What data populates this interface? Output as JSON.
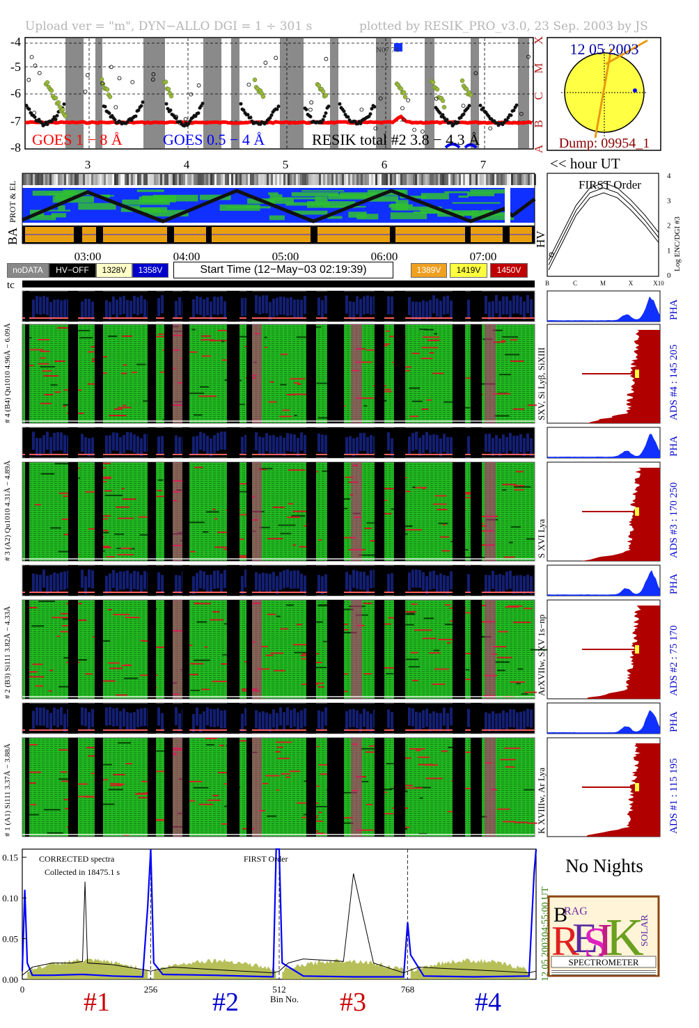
{
  "header": {
    "left": "Upload ver = \"m\", DYN−ALLO DGI =   1 ÷ 301 s",
    "right": "plotted by RESIK_PRO_v3.0, 23 Sep. 2003 by JS"
  },
  "goes": {
    "y_ticks": [
      "-4",
      "-5",
      "-6",
      "-7",
      "-8"
    ],
    "class_letters": [
      "X",
      "M",
      "C",
      "B",
      "A"
    ],
    "label_1_8": "GOES 1 − 8 Å",
    "label_05_4": "GOES 0.5 − 4 Å",
    "label_resik": "RESIK total #2  3.8 − 4.3 Å",
    "noaa_label": "N07 74",
    "colors": {
      "goes_long": "#ff0000",
      "goes_short": "#0000ff",
      "resik": "#000000",
      "eclipse": "#888888",
      "saa": "#9ab83a"
    }
  },
  "sun": {
    "date": "12 05 2003",
    "dump": "Dump: 09954_1"
  },
  "hour_axis": {
    "ticks": [
      "3",
      "4",
      "5",
      "6",
      "7"
    ],
    "label": "<< hour UT"
  },
  "orbit": {
    "prot_label": "PROT & EL",
    "ba_label": "BA",
    "hv_label": "HV"
  },
  "time_axis": {
    "ticks": [
      "03:00",
      "04:00",
      "05:00",
      "06:00",
      "07:00"
    ]
  },
  "legend": {
    "nodata": "noDATA",
    "hvoff": "HV−OFF",
    "v1328": "1328V",
    "v1358": "1358V",
    "start_time": "Start Time (12−May−03 02:19:39)",
    "v1389": "1389V",
    "v1419": "1419V",
    "v1450": "1450V"
  },
  "tc_label": "tc",
  "channels": [
    {
      "left": "# 4 (B4) Qu1010 4.96Å − 6.09Å",
      "lines": "SXV, Si Lyβ, SiXIII",
      "ads": "ADS #4 :   145 205",
      "pha": "PHA"
    },
    {
      "left": "# 3 (A2) Qu1010  4.31Å − 4.89Å",
      "lines": "S XVI Lya",
      "ads": "ADS #3 :   170 250",
      "pha": "PHA"
    },
    {
      "left": "# 2 (B3) Si111  3.82Å − 4.33Å",
      "lines": "ArXVIIw, SXV 1s−np",
      "ads": "ADS #2 :   75 170",
      "pha": "PHA"
    },
    {
      "left": "# 1 (A1) Si111  3.37Å − 3.88Å",
      "lines": "K XVIIIw, Ar Lya",
      "ads": "ADS #1 :   115 195",
      "pha": "PHA"
    }
  ],
  "first_order": {
    "title": "FIRST Order",
    "x_ticks": [
      "B",
      "C",
      "M",
      "X",
      "X10"
    ],
    "y_ticks": [
      "0",
      "1",
      "2",
      "3",
      "4"
    ],
    "ylabel": "Log ENC/DGI #3",
    "ylim": [
      0,
      4
    ],
    "curves": [
      {
        "x": [
          0,
          0.5,
          1,
          1.5,
          2,
          2.5,
          3,
          3.5,
          4
        ],
        "y": [
          0.2,
          1.3,
          2.4,
          3.1,
          3.3,
          3.1,
          2.6,
          2.0,
          1.3
        ]
      },
      {
        "x": [
          0,
          0.5,
          1,
          1.5,
          2,
          2.5,
          3,
          3.5,
          4
        ],
        "y": [
          0.4,
          1.5,
          2.6,
          3.3,
          3.5,
          3.3,
          2.8,
          2.2,
          1.5
        ]
      },
      {
        "x": [
          0,
          0.5,
          1,
          1.5,
          2,
          2.5,
          3,
          3.5,
          4
        ],
        "y": [
          0.6,
          1.7,
          2.8,
          3.5,
          3.7,
          3.5,
          3.0,
          2.4,
          1.7
        ]
      }
    ]
  },
  "spectrum": {
    "title": "CORRECTED spectra",
    "collected": "Collected in 18475.1 s",
    "first_order": "FIRST Order",
    "y_ticks": [
      "0.15",
      "0.10",
      "0.05",
      "0.00"
    ],
    "x_ticks": [
      "0",
      "256",
      "512",
      "768"
    ],
    "xlabel": "Bin No.",
    "right_time": "04:55:00 UT",
    "right_date": "12 05 2003",
    "ylim": [
      0,
      0.16
    ],
    "channel_labels": [
      "#1",
      "#2",
      "#3",
      "#4"
    ]
  },
  "chart_data": {
    "type": "line",
    "title": "CORRECTED spectra",
    "xlabel": "Bin No.",
    "ylabel": "",
    "xlim": [
      0,
      1024
    ],
    "ylim": [
      0,
      0.16
    ],
    "series": [
      {
        "color": "#0000ff",
        "x": [
          0,
          5,
          10,
          20,
          60,
          120,
          180,
          240,
          250,
          256,
          262,
          280,
          380,
          500,
          506,
          512,
          518,
          560,
          660,
          760,
          768,
          774,
          800,
          900,
          1010,
          1020,
          1024
        ],
        "y": [
          0.01,
          0.11,
          0.02,
          0.005,
          0.005,
          0.006,
          0.004,
          0.003,
          0.09,
          0.16,
          0.02,
          0.006,
          0.005,
          0.003,
          0.17,
          0.17,
          0.02,
          0.004,
          0.003,
          0.003,
          0.07,
          0.03,
          0.004,
          0.003,
          0.004,
          0.13,
          0.16
        ]
      },
      {
        "color": "#000000",
        "x": [
          0,
          20,
          60,
          100,
          120,
          125,
          130,
          180,
          240,
          256,
          270,
          300,
          380,
          500,
          512,
          530,
          560,
          640,
          660,
          700,
          760,
          768,
          790,
          850,
          950,
          1010,
          1024
        ],
        "y": [
          0.005,
          0.015,
          0.02,
          0.02,
          0.022,
          0.12,
          0.02,
          0.018,
          0.012,
          0.01,
          0.012,
          0.015,
          0.012,
          0.008,
          0.01,
          0.02,
          0.025,
          0.022,
          0.13,
          0.02,
          0.008,
          0.01,
          0.015,
          0.013,
          0.01,
          0.008,
          0.01
        ]
      }
    ]
  },
  "no_nights": "No Nights",
  "logo": {
    "text": "SPECTROMETER",
    "letters": [
      "B",
      "RAG",
      "R",
      "E",
      "S",
      "I",
      "K",
      "SOLAR"
    ]
  }
}
